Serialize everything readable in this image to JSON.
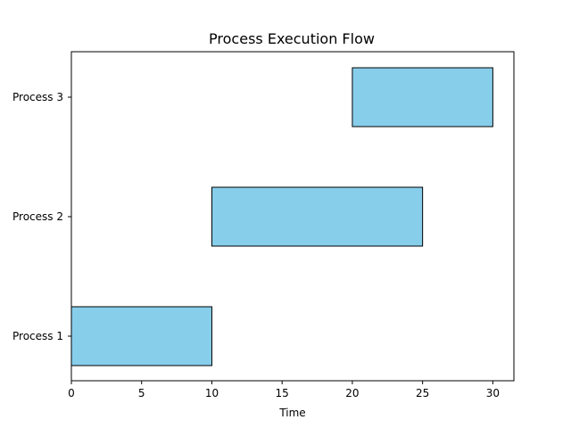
{
  "chart_data": {
    "type": "gantt",
    "title": "Process Execution Flow",
    "xlabel": "Time",
    "ylabel": "",
    "xlim": [
      0,
      31.5
    ],
    "xticks": [
      0,
      5,
      10,
      15,
      20,
      25,
      30
    ],
    "categories": [
      "Process 1",
      "Process 2",
      "Process 3"
    ],
    "tasks": [
      {
        "label": "Process 1",
        "start": 0,
        "end": 10
      },
      {
        "label": "Process 2",
        "start": 10,
        "end": 25
      },
      {
        "label": "Process 3",
        "start": 20,
        "end": 30
      }
    ],
    "bar_color": "#87CEEB",
    "edge_color": "#000000",
    "grid": false,
    "legend": "none"
  }
}
